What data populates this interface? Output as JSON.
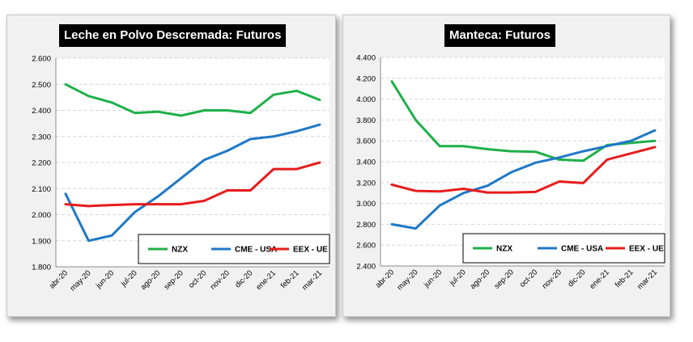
{
  "chart_data": [
    {
      "type": "line",
      "title": "Leche en Polvo Descremada: Futuros",
      "categories": [
        "abr-20",
        "may-20",
        "jun-20",
        "jul-20",
        "ago-20",
        "sep-20",
        "oct-20",
        "nov-20",
        "dic-20",
        "ene-21",
        "feb-21",
        "mar-21"
      ],
      "ylim": [
        1800,
        2600
      ],
      "yticks": [
        1800,
        1900,
        2000,
        2100,
        2200,
        2300,
        2400,
        2500,
        2600
      ],
      "ytick_labels": [
        "1.800",
        "1.900",
        "2.000",
        "2.100",
        "2.200",
        "2.300",
        "2.400",
        "2.500",
        "2.600"
      ],
      "grid": true,
      "legend_position": "bottom-right",
      "series": [
        {
          "name": "NZX",
          "color": "#1fb04a",
          "values": [
            2500,
            2455,
            2430,
            2390,
            2395,
            2380,
            2400,
            2400,
            2390,
            2460,
            2475,
            2440
          ]
        },
        {
          "name": "CME - USA",
          "color": "#1f78c8",
          "values": [
            2080,
            1900,
            1920,
            2010,
            2070,
            2140,
            2210,
            2245,
            2290,
            2300,
            2320,
            2345
          ]
        },
        {
          "name": "EEX - UE",
          "color": "#e81c1c",
          "values": [
            2040,
            2033,
            2037,
            2040,
            2040,
            2040,
            2053,
            2093,
            2093,
            2175,
            2175,
            2200
          ]
        }
      ]
    },
    {
      "type": "line",
      "title": "Manteca: Futuros",
      "categories": [
        "abr-20",
        "may-20",
        "jun-20",
        "jul-20",
        "ago-20",
        "sep-20",
        "oct-20",
        "nov-20",
        "dic-20",
        "ene-21",
        "feb-21",
        "mar-21"
      ],
      "ylim": [
        2400,
        4400
      ],
      "yticks": [
        2400,
        2600,
        2800,
        3000,
        3200,
        3400,
        3600,
        3800,
        4000,
        4200,
        4400
      ],
      "ytick_labels": [
        "2.400",
        "2.600",
        "2.800",
        "3.000",
        "3.200",
        "3.400",
        "3.600",
        "3.800",
        "4.000",
        "4.200",
        "4.400"
      ],
      "grid": true,
      "legend_position": "bottom-right",
      "series": [
        {
          "name": "NZX",
          "color": "#1fb04a",
          "values": [
            4170,
            3800,
            3550,
            3550,
            3520,
            3500,
            3495,
            3420,
            3410,
            3560,
            3580,
            3600
          ]
        },
        {
          "name": "CME - USA",
          "color": "#1f78c8",
          "values": [
            2800,
            2760,
            2980,
            3100,
            3170,
            3300,
            3390,
            3440,
            3500,
            3550,
            3600,
            3700
          ]
        },
        {
          "name": "EEX - UE",
          "color": "#e81c1c",
          "values": [
            3180,
            3120,
            3115,
            3140,
            3105,
            3105,
            3110,
            3210,
            3195,
            3420,
            3480,
            3540
          ]
        }
      ]
    }
  ]
}
